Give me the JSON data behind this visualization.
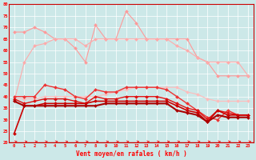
{
  "xlabel": "Vent moyen/en rafales ( km/h )",
  "xlim": [
    -0.5,
    23.5
  ],
  "ylim": [
    20,
    80
  ],
  "yticks": [
    20,
    25,
    30,
    35,
    40,
    45,
    50,
    55,
    60,
    65,
    70,
    75,
    80
  ],
  "xticks": [
    0,
    1,
    2,
    3,
    4,
    5,
    6,
    7,
    8,
    9,
    10,
    11,
    12,
    13,
    14,
    15,
    16,
    17,
    18,
    19,
    20,
    21,
    22,
    23
  ],
  "bg_color": "#cce8e8",
  "grid_color": "#aacccc",
  "series": [
    {
      "color": "#ff9999",
      "marker": "D",
      "markersize": 2.0,
      "linewidth": 0.8,
      "y": [
        68,
        68,
        70,
        68,
        65,
        65,
        61,
        55,
        71,
        65,
        65,
        77,
        72,
        65,
        65,
        65,
        65,
        65,
        57,
        55,
        49,
        49,
        49,
        49
      ]
    },
    {
      "color": "#ffaaaa",
      "marker": "D",
      "markersize": 2.0,
      "linewidth": 0.8,
      "y": [
        38,
        55,
        62,
        63,
        65,
        65,
        65,
        62,
        65,
        65,
        65,
        65,
        65,
        65,
        65,
        65,
        62,
        60,
        57,
        55,
        55,
        55,
        55,
        49
      ]
    },
    {
      "color": "#ffbbbb",
      "marker": "D",
      "markersize": 2.0,
      "linewidth": 0.8,
      "y": [
        39,
        39,
        39,
        40,
        40,
        40,
        40,
        40,
        40,
        41,
        42,
        43,
        44,
        44,
        44,
        44,
        44,
        42,
        41,
        39,
        38,
        38,
        38,
        38
      ]
    },
    {
      "color": "#ee3333",
      "marker": "D",
      "markersize": 2.0,
      "linewidth": 1.0,
      "y": [
        40,
        40,
        40,
        45,
        44,
        43,
        40,
        39,
        43,
        42,
        42,
        44,
        44,
        44,
        44,
        43,
        40,
        37,
        34,
        31,
        30,
        34,
        32,
        32
      ]
    },
    {
      "color": "#dd1111",
      "marker": "D",
      "markersize": 2.0,
      "linewidth": 1.0,
      "y": [
        39,
        37,
        38,
        39,
        39,
        39,
        38,
        37,
        40,
        39,
        39,
        40,
        40,
        40,
        40,
        39,
        37,
        35,
        34,
        30,
        34,
        33,
        32,
        32
      ]
    },
    {
      "color": "#cc0000",
      "marker": "D",
      "markersize": 2.0,
      "linewidth": 1.2,
      "y": [
        24,
        36,
        36,
        37,
        37,
        37,
        37,
        37,
        38,
        38,
        38,
        38,
        38,
        38,
        38,
        38,
        36,
        34,
        33,
        29,
        34,
        32,
        32,
        32
      ]
    },
    {
      "color": "#aa0000",
      "marker": "D",
      "markersize": 2.0,
      "linewidth": 1.5,
      "y": [
        38,
        36,
        36,
        36,
        36,
        36,
        36,
        36,
        36,
        37,
        37,
        37,
        37,
        37,
        37,
        37,
        34,
        33,
        32,
        29,
        32,
        31,
        31,
        31
      ]
    }
  ],
  "arrow_color": "#ee2222",
  "hline_color": "#cc0000",
  "figwidth": 3.2,
  "figheight": 2.0,
  "dpi": 100
}
